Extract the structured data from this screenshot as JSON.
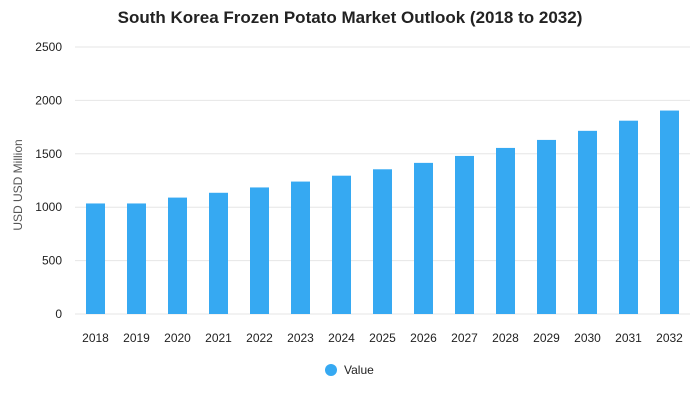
{
  "chart_data": {
    "type": "bar",
    "title": "South Korea Frozen Potato Market Outlook (2018 to 2032)",
    "xlabel": "",
    "ylabel": "USD USD Million",
    "categories": [
      "2018",
      "2019",
      "2020",
      "2021",
      "2022",
      "2023",
      "2024",
      "2025",
      "2026",
      "2027",
      "2028",
      "2029",
      "2030",
      "2031",
      "2032"
    ],
    "series": [
      {
        "name": "Value",
        "values": [
          1035,
          1035,
          1090,
          1135,
          1185,
          1240,
          1295,
          1355,
          1415,
          1480,
          1555,
          1630,
          1715,
          1810,
          1905
        ]
      }
    ],
    "ylim": [
      0,
      2500
    ],
    "yticks": [
      0,
      500,
      1000,
      1500,
      2000,
      2500
    ],
    "grid": true,
    "legend_position": "bottom",
    "colors": {
      "bar": "#36a9f2",
      "grid": "#e6e6e6"
    }
  }
}
